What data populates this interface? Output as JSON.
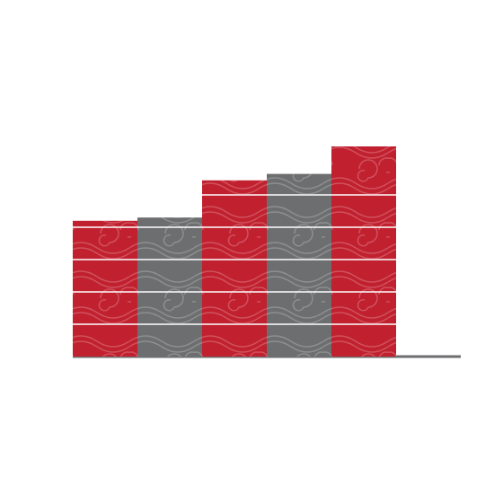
{
  "chart_data": {
    "type": "bar",
    "values": [
      4.2,
      4.3,
      5.45,
      5.65,
      6.5
    ],
    "colors": [
      "#c1202f",
      "#6d6e70",
      "#c1202f",
      "#6d6e70",
      "#c1202f"
    ],
    "ylim": [
      0,
      7
    ],
    "yticks": [
      1,
      2,
      3,
      4,
      5
    ],
    "grid": true
  }
}
